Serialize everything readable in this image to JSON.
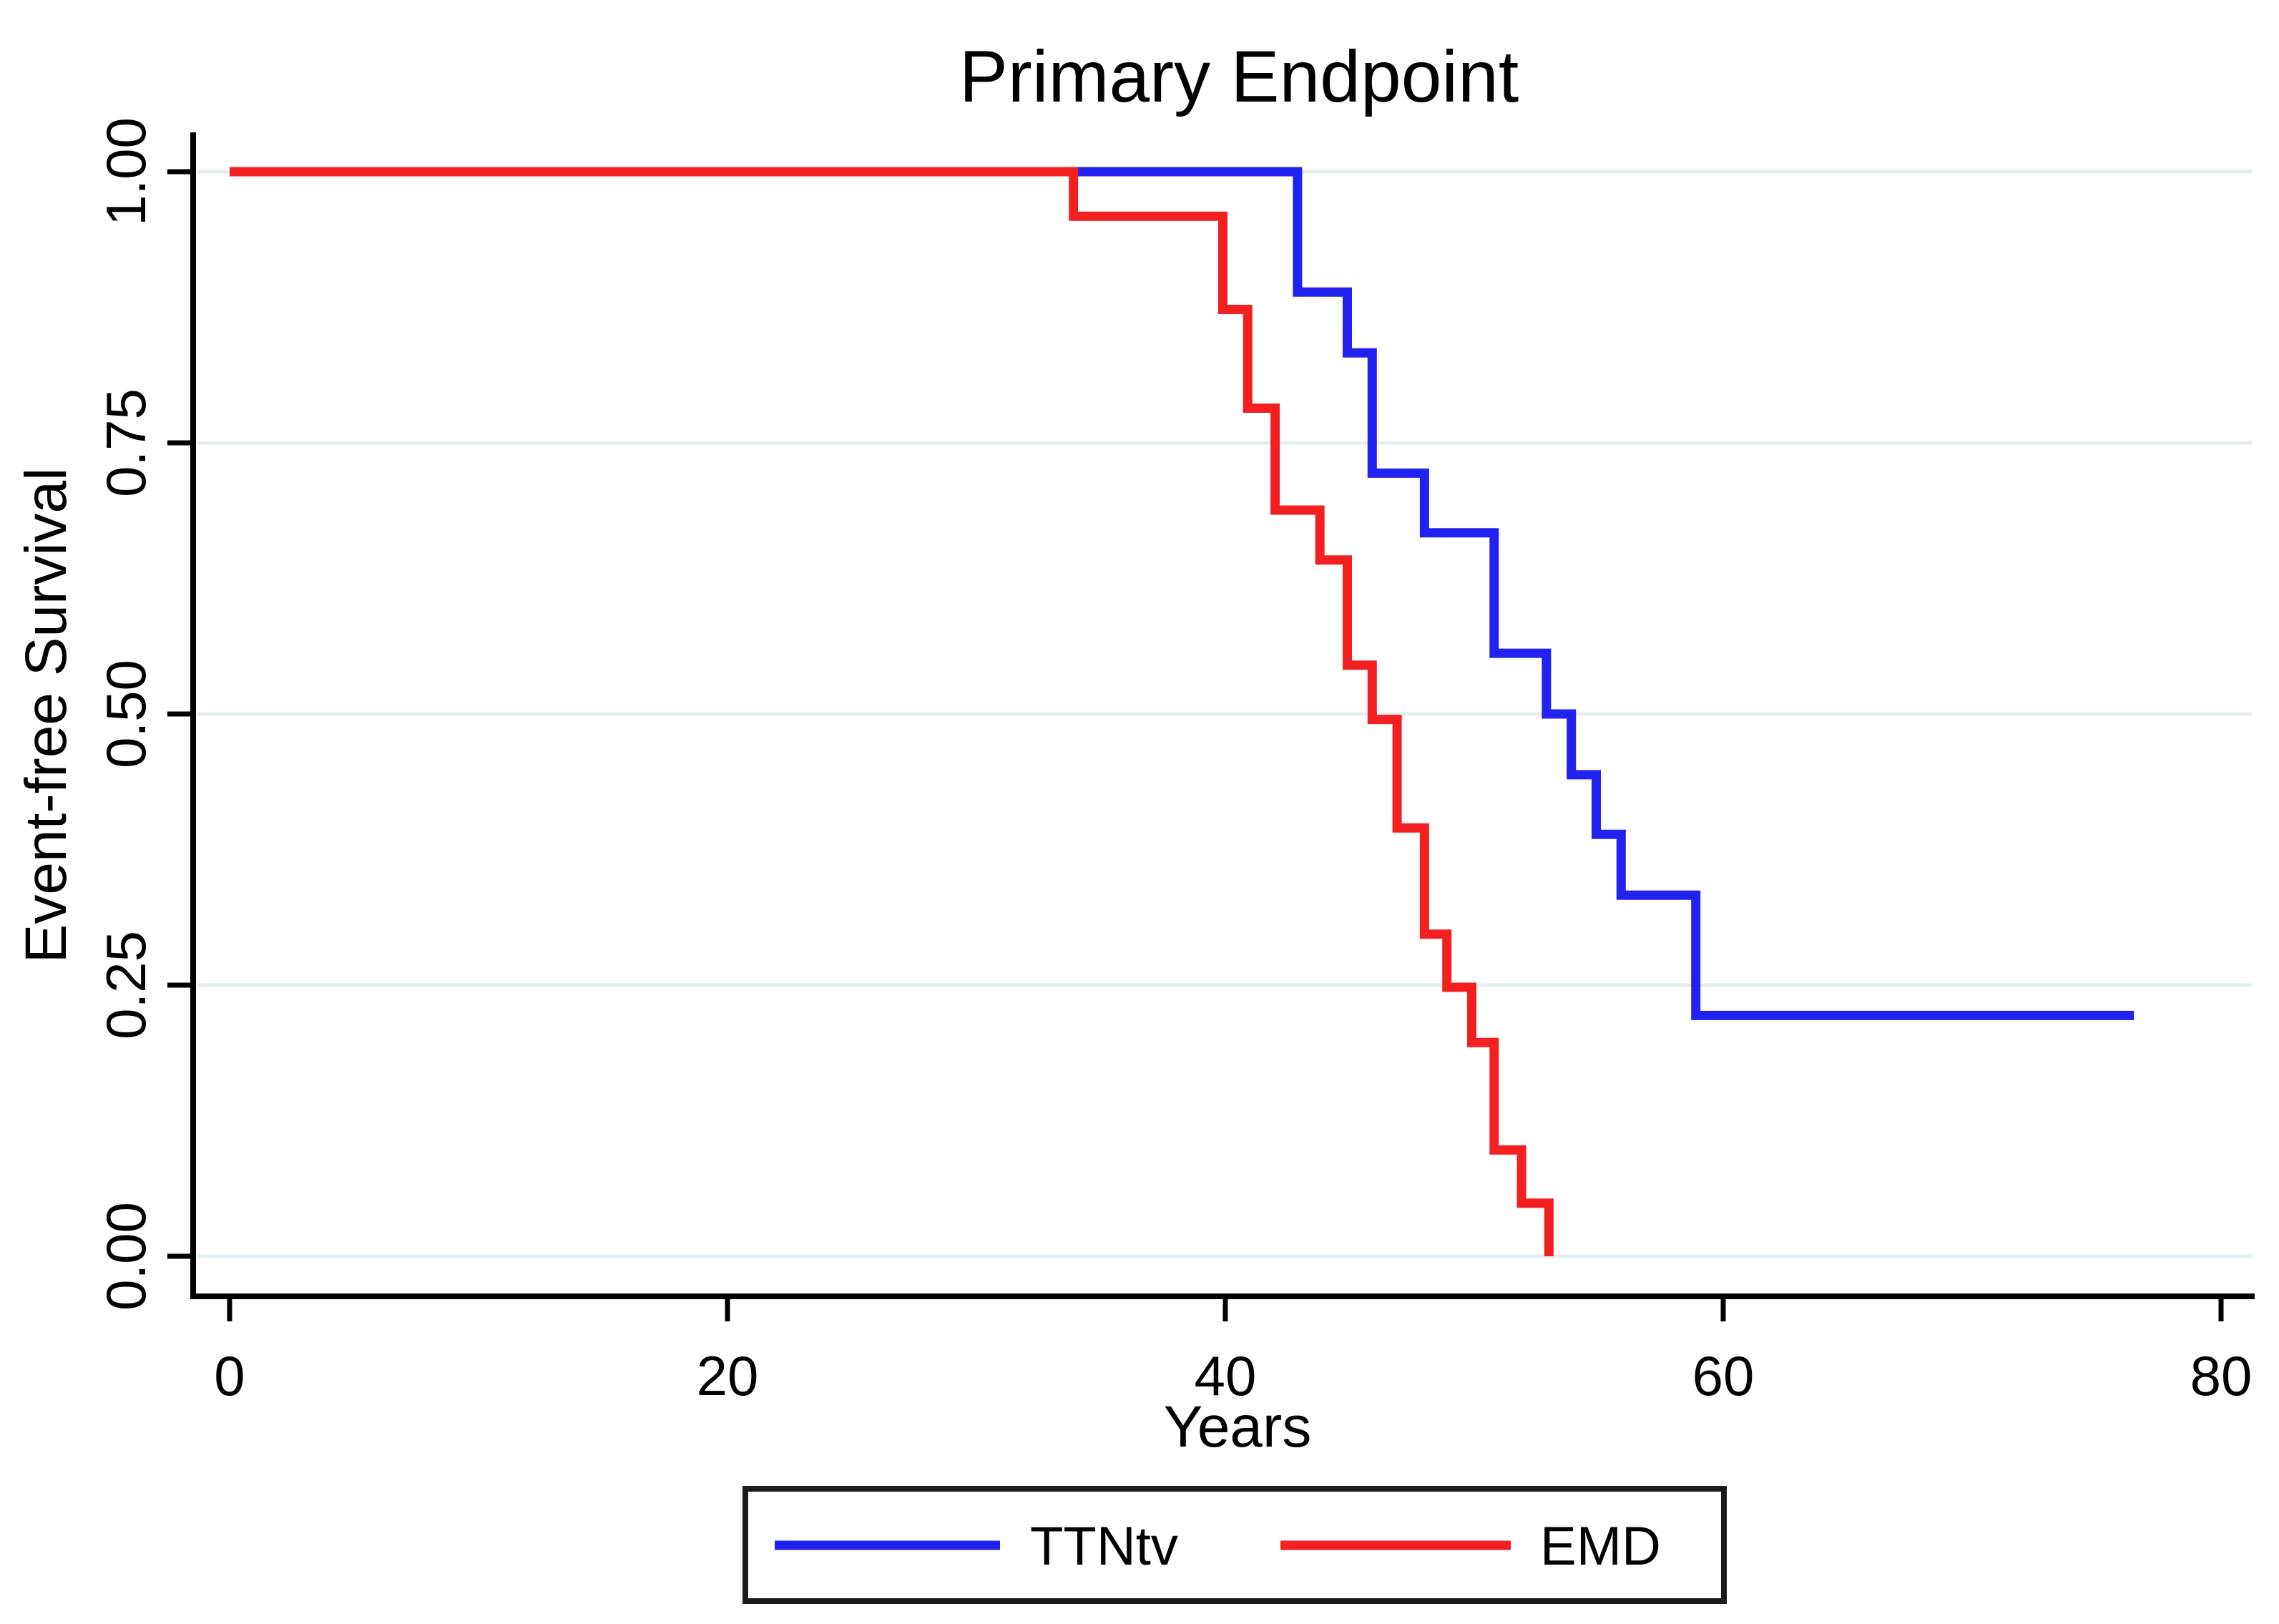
{
  "chart_data": {
    "type": "line",
    "subtype": "kaplan-meier-step",
    "title": "Primary Endpoint",
    "xlabel": "Years",
    "ylabel": "Event-free Survival",
    "xlim": [
      0,
      81
    ],
    "ylim": [
      0,
      1
    ],
    "x_ticks": [
      0,
      20,
      40,
      60,
      80
    ],
    "x_tick_labels": [
      "0",
      "20",
      "40",
      "60",
      "80"
    ],
    "y_ticks": [
      0,
      0.25,
      0.5,
      0.75,
      1
    ],
    "y_tick_labels": [
      "0.00",
      "0.25",
      "0.50",
      "0.75",
      "1.00"
    ],
    "grid": "horizontal",
    "gridline_color": "#e4eef0",
    "axis_color": "#000000",
    "legend_position": "bottom-center",
    "series": [
      {
        "name": "TTNtv",
        "color": "#2121f0",
        "points": [
          [
            0,
            1.0
          ],
          [
            42.9,
            0.889
          ],
          [
            44.9,
            0.833
          ],
          [
            45.9,
            0.722
          ],
          [
            48.0,
            0.667
          ],
          [
            50.8,
            0.556
          ],
          [
            52.9,
            0.5
          ],
          [
            53.9,
            0.444
          ],
          [
            54.9,
            0.389
          ],
          [
            55.9,
            0.333
          ],
          [
            58.9,
            0.222
          ]
        ],
        "end_t": 76.5
      },
      {
        "name": "EMD",
        "color": "#f22020",
        "points": [
          [
            0,
            1.0
          ],
          [
            33.9,
            0.959
          ],
          [
            39.9,
            0.873
          ],
          [
            40.9,
            0.782
          ],
          [
            42.0,
            0.688
          ],
          [
            43.8,
            0.642
          ],
          [
            44.9,
            0.545
          ],
          [
            45.9,
            0.495
          ],
          [
            46.9,
            0.395
          ],
          [
            48.0,
            0.297
          ],
          [
            48.9,
            0.248
          ],
          [
            49.9,
            0.197
          ],
          [
            50.8,
            0.098
          ],
          [
            51.9,
            0.049
          ],
          [
            53.0,
            0.0
          ]
        ],
        "end_t": 53.0
      }
    ]
  }
}
